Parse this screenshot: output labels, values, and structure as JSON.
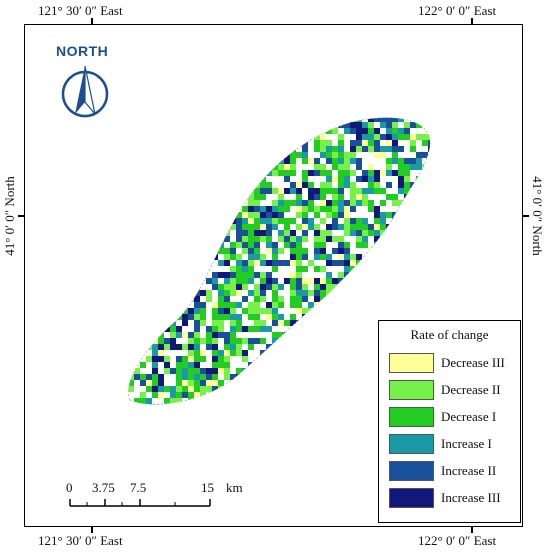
{
  "coords": {
    "top_left": "121° 30′ 0″ East",
    "top_right": "122° 0′ 0″ East",
    "bottom_left": "121° 30′ 0″ East",
    "bottom_right": "122° 0′ 0″ East",
    "left": "41° 0′ 0″ North",
    "right": "41° 0′ 0″ North"
  },
  "north_arrow": {
    "label": "NORTH",
    "color": "#1d4f8f"
  },
  "legend": {
    "title": "Rate of change",
    "items": [
      {
        "label": "Decrease III",
        "color": "#ffff99"
      },
      {
        "label": "Decrease II",
        "color": "#77f04a"
      },
      {
        "label": "Decrease I",
        "color": "#22cc22"
      },
      {
        "label": "Increase I",
        "color": "#1a9aa6"
      },
      {
        "label": "Increase II",
        "color": "#1a4f9a"
      },
      {
        "label": "Increase III",
        "color": "#12177a"
      }
    ]
  },
  "scale_bar": {
    "ticks": [
      "0",
      "3.75",
      "7.5",
      "15"
    ],
    "unit": "km"
  }
}
